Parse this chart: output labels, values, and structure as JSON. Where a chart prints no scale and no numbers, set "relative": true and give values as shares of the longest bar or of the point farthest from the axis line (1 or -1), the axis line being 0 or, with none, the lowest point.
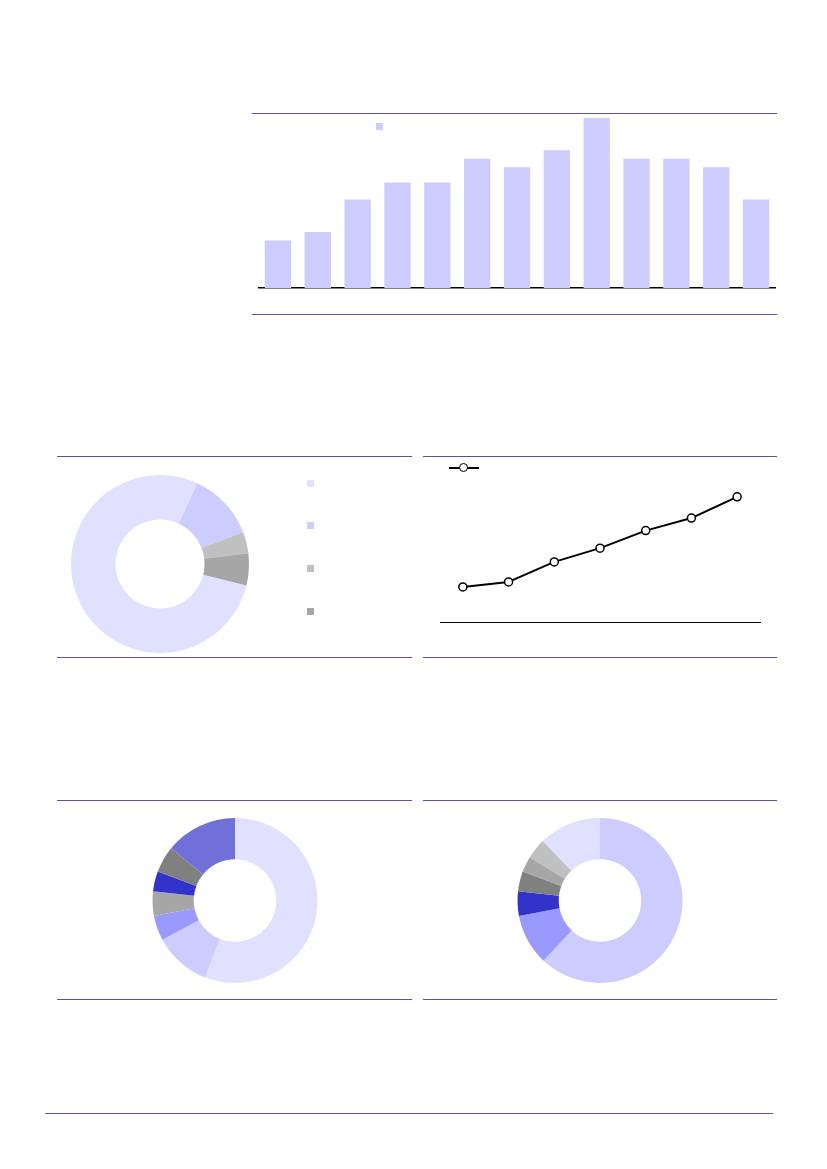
{
  "chart_data": [
    {
      "type": "bar",
      "relative": true,
      "categories": [
        null,
        null,
        null,
        null,
        null,
        null,
        null,
        null,
        null,
        null,
        null,
        null,
        null
      ],
      "series": [
        {
          "color": "#ccccff",
          "values": [
            0.28,
            0.33,
            0.52,
            0.62,
            0.62,
            0.76,
            0.71,
            0.81,
            1,
            0.76,
            0.76,
            0.71,
            0.52
          ]
        }
      ]
    },
    {
      "type": "donut",
      "categories": [
        null,
        null,
        null,
        null
      ],
      "values": [
        78.0,
        12.3,
        3.9,
        5.8
      ],
      "colors": [
        "#e0e0ff",
        "#ccccff",
        "#c0c0c0",
        "#a6a6a6"
      ]
    },
    {
      "type": "line",
      "relative": true,
      "categories": [
        null,
        null,
        null,
        null,
        null,
        null,
        null
      ],
      "marker": "circle",
      "line_style": "solid",
      "series": [
        {
          "color": "#000000",
          "values": [
            0.28,
            0.32,
            0.48,
            0.59,
            0.73,
            0.83,
            1
          ]
        }
      ]
    },
    {
      "type": "donut",
      "categories": [
        null,
        null,
        null,
        null,
        null,
        null,
        null
      ],
      "values": [
        55.9,
        11.2,
        4.9,
        4.8,
        3.9,
        5.2,
        14.1
      ],
      "colors": [
        "#e0e0ff",
        "#ccccff",
        "#9999ff",
        "#a6a6a6",
        "#3333cc",
        "#808080",
        "#7070d8"
      ]
    },
    {
      "type": "donut",
      "categories": [
        null,
        null,
        null,
        null,
        null,
        null,
        null
      ],
      "values": [
        62.0,
        10.0,
        4.8,
        3.9,
        3.1,
        4.0,
        12.2
      ],
      "colors": [
        "#ccccff",
        "#9999ff",
        "#3333cc",
        "#808080",
        "#a6a6a6",
        "#c0c0c0",
        "#e0e0ff"
      ]
    }
  ]
}
